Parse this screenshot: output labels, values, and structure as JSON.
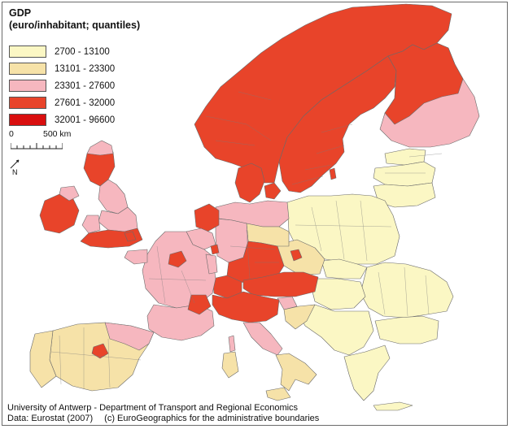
{
  "title": {
    "line1": "GDP",
    "line2": "(euro/inhabitant; quantiles)"
  },
  "legend": [
    {
      "label": "2700 - 13100",
      "color": "#FBF7C4"
    },
    {
      "label": "13101 - 23300",
      "color": "#F6E2A8"
    },
    {
      "label": "23301 - 27600",
      "color": "#F6B7BF"
    },
    {
      "label": "27601 - 32000",
      "color": "#E8442A"
    },
    {
      "label": "32001 - 96600",
      "color": "#D90F0F"
    }
  ],
  "scale": {
    "start": "0",
    "end": "500 km"
  },
  "north": {
    "label": "N",
    "icon": "north-arrow-icon"
  },
  "footer": {
    "line1": "University of Antwerp - Department of Transport and Regional Economics",
    "data_source": "Data: Eurostat (2007)",
    "copyright": "(c) EuroGeographics for the administrative boundaries"
  },
  "colors": {
    "sea": "#FFFFFF",
    "border": "#6E6E6E"
  }
}
